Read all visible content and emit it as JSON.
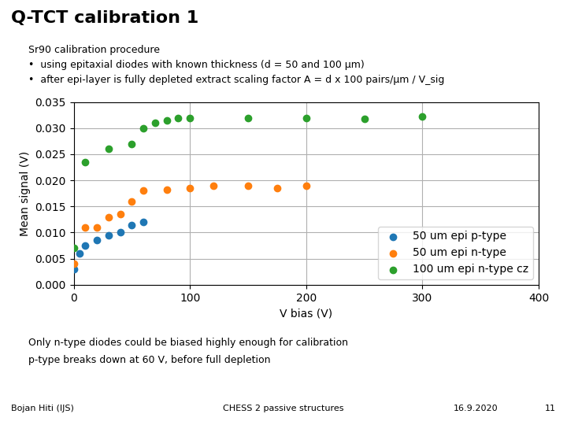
{
  "chart_data": {
    "type": "scatter",
    "title": "Q-TCT calibration 1",
    "annotations": [
      "Sr90 calibration procedure",
      "•  using epitaxial diodes with known thickness (d = 50 and 100 μm)",
      "•  after epi-layer is fully depleted extract scaling factor A = d x 100 pairs/μm / V_sig",
      "Only n-type diodes could be biased highly enough for calibration",
      "p-type breaks down at 60 V, before full depletion",
      "Bojan Hiti (IJS)",
      "CHESS 2 passive structures",
      "16.9.2020",
      "11"
    ],
    "x_label": "V bias (V)",
    "y_label": "Mean signal (V)",
    "xlim": [
      0,
      400
    ],
    "ylim": [
      0,
      0.035
    ],
    "xticks": [
      0,
      100,
      200,
      300,
      400
    ],
    "yticks": [
      {
        "value": 0,
        "label": "0.000"
      },
      {
        "value": 0.005,
        "label": "0.005"
      },
      {
        "value": 0.01,
        "label": "0.010"
      },
      {
        "value": 0.015,
        "label": "0.015"
      },
      {
        "value": 0.02,
        "label": "0.020"
      },
      {
        "value": 0.025,
        "label": "0.025"
      },
      {
        "value": 0.03,
        "label": "0.030"
      },
      {
        "value": 0.035,
        "label": "0.035"
      }
    ],
    "grid": true,
    "legend": "lower right",
    "series": [
      {
        "name": "50 um epi p-type",
        "x": [
          0,
          5,
          10,
          20,
          30,
          40,
          50,
          60
        ],
        "values": [
          0.003,
          0.006,
          0.0075,
          0.0085,
          0.0095,
          0.01,
          0.0115,
          0.012
        ]
      },
      {
        "name": "50 um epi n-type",
        "x": [
          0,
          10,
          20,
          30,
          40,
          50,
          60,
          80,
          100,
          120,
          150,
          175,
          200
        ],
        "values": [
          0.004,
          0.011,
          0.011,
          0.013,
          0.0135,
          0.016,
          0.018,
          0.0182,
          0.0185,
          0.019,
          0.019,
          0.0185,
          0.019
        ]
      },
      {
        "name": "100 um epi n-type cz",
        "x": [
          0,
          10,
          30,
          50,
          60,
          70,
          80,
          90,
          100,
          150,
          200,
          250,
          300
        ],
        "values": [
          0.007,
          0.0235,
          0.026,
          0.027,
          0.03,
          0.031,
          0.0315,
          0.032,
          0.032,
          0.032,
          0.032,
          0.0318,
          0.0322
        ]
      }
    ]
  }
}
